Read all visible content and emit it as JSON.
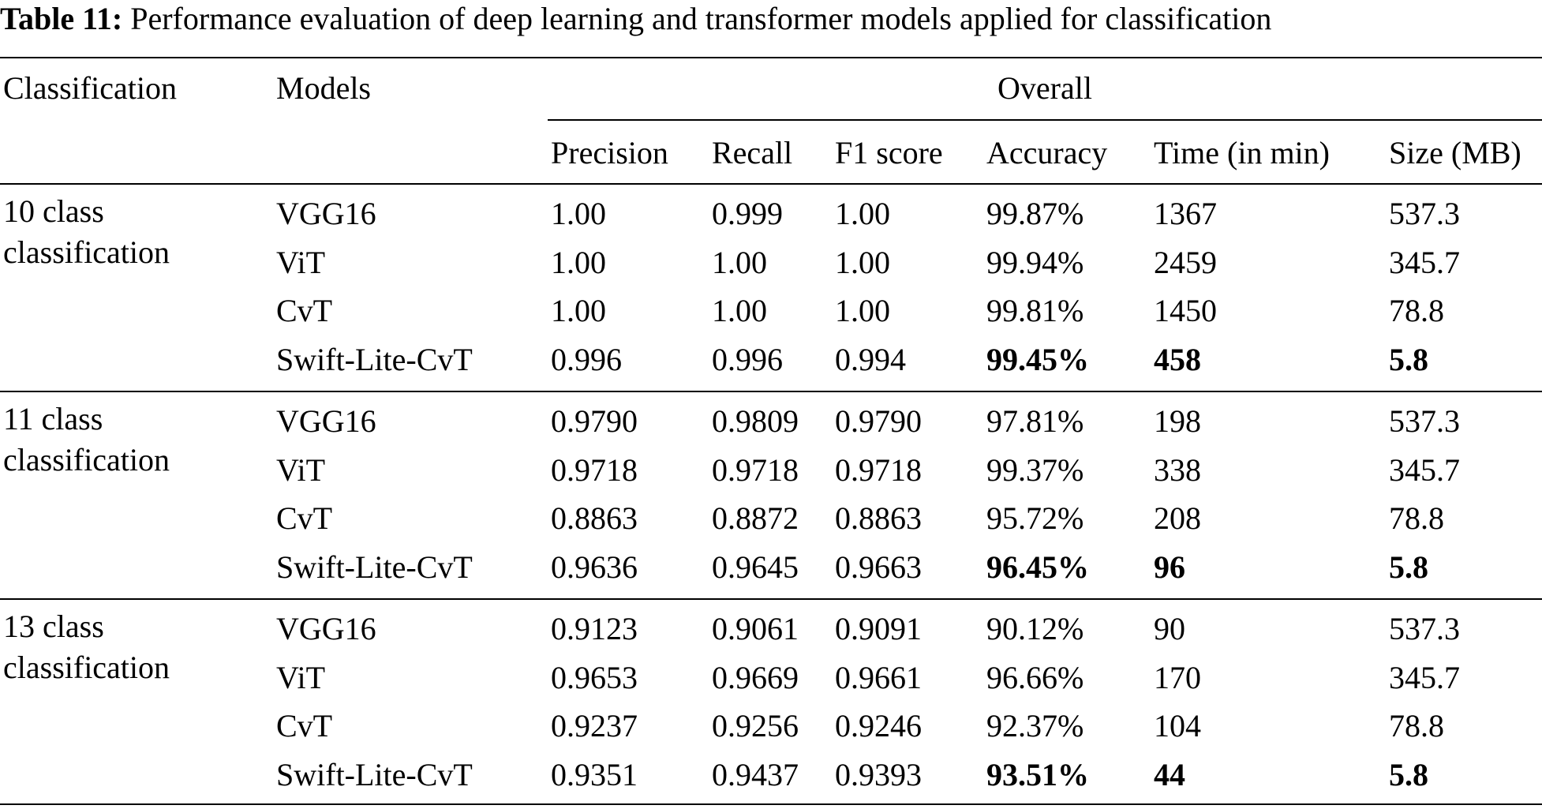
{
  "caption": {
    "label": "Table 11:",
    "text": " Performance evaluation of deep learning and transformer models applied for classification"
  },
  "table": {
    "headers": {
      "classification": "Classification",
      "models": "Models",
      "overall": "Overall",
      "precision": "Precision",
      "recall": "Recall",
      "f1": "F1 score",
      "accuracy": "Accuracy",
      "time": "Time (in min)",
      "size": "Size (MB)"
    },
    "groups": [
      {
        "label_line1": "10 class",
        "label_line2": "classification",
        "rows": [
          {
            "model": "VGG16",
            "precision": "1.00",
            "recall": "0.999",
            "f1": "1.00",
            "accuracy": "99.87%",
            "time": "1367",
            "size": "537.3"
          },
          {
            "model": "ViT",
            "precision": "1.00",
            "recall": "1.00",
            "f1": "1.00",
            "accuracy": "99.94%",
            "time": "2459",
            "size": "345.7"
          },
          {
            "model": "CvT",
            "precision": "1.00",
            "recall": "1.00",
            "f1": "1.00",
            "accuracy": "99.81%",
            "time": "1450",
            "size": "78.8"
          },
          {
            "model": "Swift-Lite-CvT",
            "precision": "0.996",
            "recall": "0.996",
            "f1": "0.994",
            "accuracy": "99.45%",
            "time": "458",
            "size": "5.8"
          }
        ]
      },
      {
        "label_line1": "11 class",
        "label_line2": "classification",
        "rows": [
          {
            "model": "VGG16",
            "precision": "0.9790",
            "recall": "0.9809",
            "f1": "0.9790",
            "accuracy": "97.81%",
            "time": "198",
            "size": "537.3"
          },
          {
            "model": "ViT",
            "precision": "0.9718",
            "recall": "0.9718",
            "f1": "0.9718",
            "accuracy": "99.37%",
            "time": "338",
            "size": "345.7"
          },
          {
            "model": "CvT",
            "precision": "0.8863",
            "recall": "0.8872",
            "f1": "0.8863",
            "accuracy": "95.72%",
            "time": "208",
            "size": "78.8"
          },
          {
            "model": "Swift-Lite-CvT",
            "precision": "0.9636",
            "recall": "0.9645",
            "f1": "0.9663",
            "accuracy": "96.45%",
            "time": "96",
            "size": "5.8"
          }
        ]
      },
      {
        "label_line1": "13 class",
        "label_line2": "classification",
        "rows": [
          {
            "model": "VGG16",
            "precision": "0.9123",
            "recall": "0.9061",
            "f1": "0.9091",
            "accuracy": "90.12%",
            "time": "90",
            "size": "537.3"
          },
          {
            "model": "ViT",
            "precision": "0.9653",
            "recall": "0.9669",
            "f1": "0.9661",
            "accuracy": "96.66%",
            "time": "170",
            "size": "345.7"
          },
          {
            "model": "CvT",
            "precision": "0.9237",
            "recall": "0.9256",
            "f1": "0.9246",
            "accuracy": "92.37%",
            "time": "104",
            "size": "78.8"
          },
          {
            "model": "Swift-Lite-CvT",
            "precision": "0.9351",
            "recall": "0.9437",
            "f1": "0.9393",
            "accuracy": "93.51%",
            "time": "44",
            "size": "5.8"
          }
        ]
      }
    ]
  }
}
